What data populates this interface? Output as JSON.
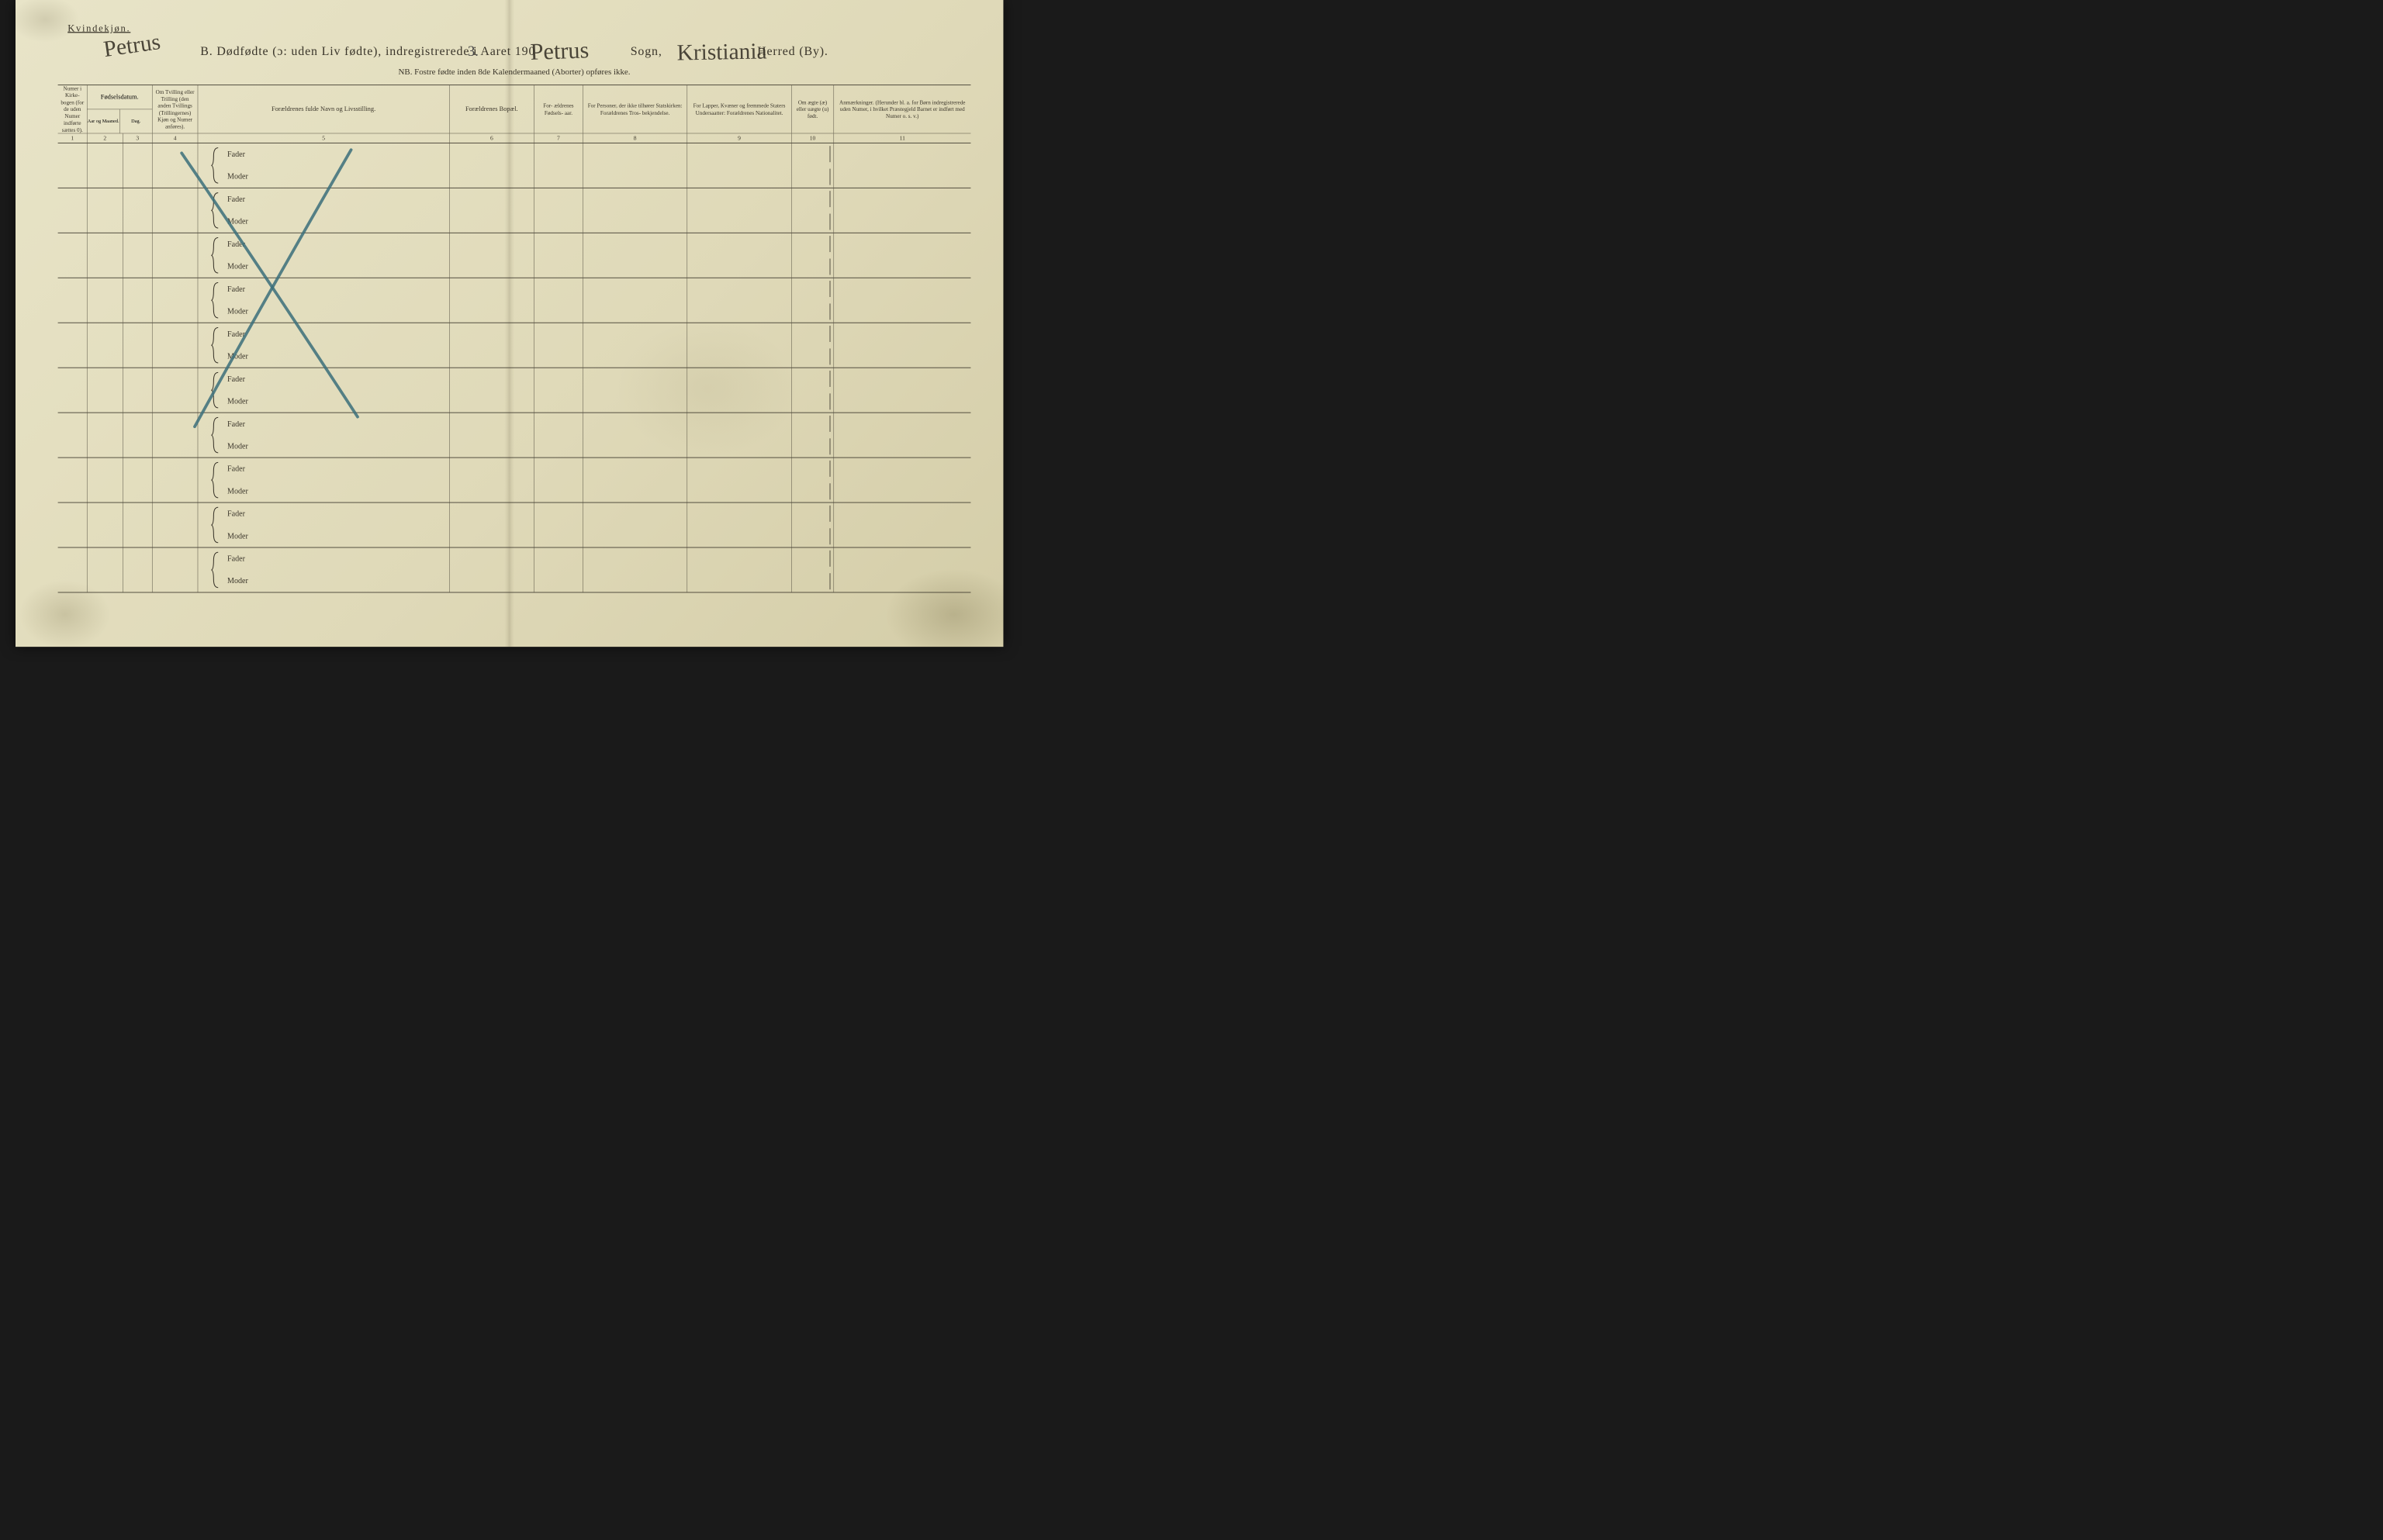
{
  "corner_label": "Kvindekjøn.",
  "title": {
    "prefix": "B.   Dødfødte (ɔ: uden Liv fødte), indregistrerede i Aaret 190",
    "mid1": "Sogn,",
    "suffix": "Herred (By)."
  },
  "nb_line": "NB.  Fostre fødte inden 8de Kalendermaaned (Aborter) opføres ikke.",
  "handwritten": {
    "top_left": "Petrus",
    "year_suffix": "3.",
    "sogn": "Petrus",
    "herred": "Kristiania"
  },
  "headers": {
    "c1": "Numer i Kirke- bogen (for de uden Numer indførte sættes 0).",
    "c23_top": "Fødselsdatum.",
    "c2": "Aar og Maaned.",
    "c3": "Dag.",
    "c4": "Om Tvilling eller Trilling (den anden Tvillings (Trillingernes) Kjøn og Numer anføres).",
    "c5": "Forældrenes fulde Navn og Livsstilling.",
    "c6": "Forældrenes Bopæl.",
    "c7": "For- ældrenes Fødsels- aar.",
    "c8": "For Personer, der ikke tilhører Statskirken: Forældrenes Tros- bekjendelse.",
    "c9": "For Lapper, Kvæner og fremmede Staters Undersaatter: Forældrenes Nationalitet.",
    "c10": "Om ægte (æ) eller uægte (u) født.",
    "c11": "Anmærkninger. (Herunder bl. a. for Børn indregistrerede uden Numer, i hvilket Præstegjeld Barnet er indført med Numer o. s. v.)"
  },
  "colnums": [
    "1",
    "2",
    "3",
    "4",
    "5",
    "6",
    "7",
    "8",
    "9",
    "10",
    "11"
  ],
  "row_labels": {
    "fader": "Fader",
    "moder": "Moder"
  },
  "row_count": 10,
  "colors": {
    "ink": "#3a352a",
    "pencil_blue": "#3b6e7a",
    "paper_light": "#e8e4c8",
    "paper_dark": "#d4cda8"
  }
}
